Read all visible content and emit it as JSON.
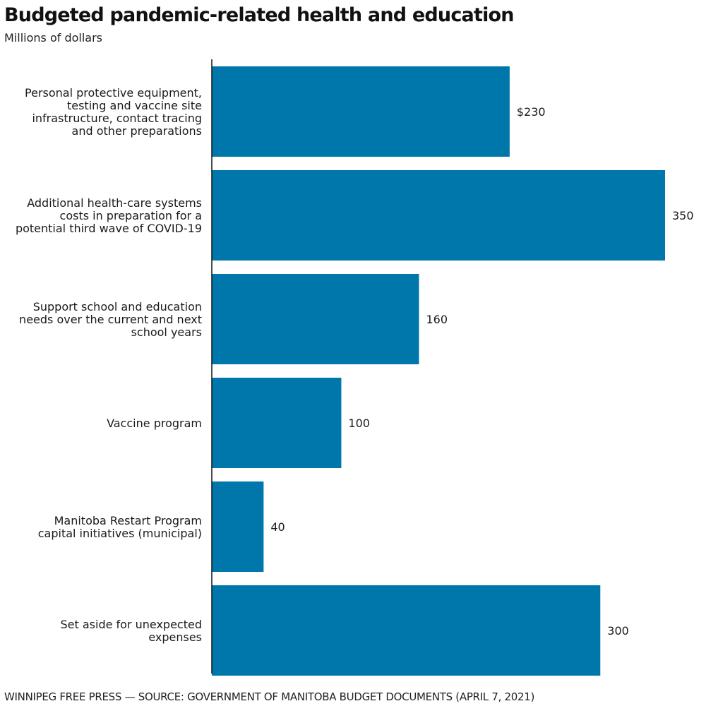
{
  "chart_data": {
    "type": "bar",
    "orientation": "horizontal",
    "title": "Budgeted pandemic-related health and education",
    "subtitle": "Millions of dollars",
    "categories": [
      "Personal protective equipment, testing and vaccine site infrastructure, contact tracing and other preparations",
      "Additional health-care systems costs in preparation for a potential third wave of COVID-19",
      "Support school and education needs over the current and next school years",
      "Vaccine program",
      "Manitoba Restart Program capital initiatives (municipal)",
      "Set aside for unexpected expenses"
    ],
    "category_lines": [
      [
        "Personal protective equipment,",
        "testing and vaccine site",
        "infrastructure, contact tracing",
        "and other preparations"
      ],
      [
        "Additional health-care systems",
        "costs in preparation for a",
        "potential third wave of COVID-19"
      ],
      [
        "Support school and education",
        "needs over the current and next",
        "school years"
      ],
      [
        "Vaccine program"
      ],
      [
        "Manitoba Restart Program",
        "capital initiatives (municipal)"
      ],
      [
        "Set aside for unexpected",
        "expenses"
      ]
    ],
    "values": [
      230,
      350,
      160,
      100,
      40,
      300
    ],
    "data_labels": [
      "$230",
      "350",
      "160",
      "100",
      "40",
      "300"
    ],
    "xlim": [
      0,
      350
    ],
    "xlabel": "",
    "ylabel": "",
    "bar_color": "#0077aa",
    "axis_color": "#111111",
    "label_color": "#1a1a1a"
  },
  "source": "WINNIPEG FREE PRESS — SOURCE: GOVERNMENT OF MANITOBA BUDGET DOCUMENTS (APRIL 7, 2021)"
}
